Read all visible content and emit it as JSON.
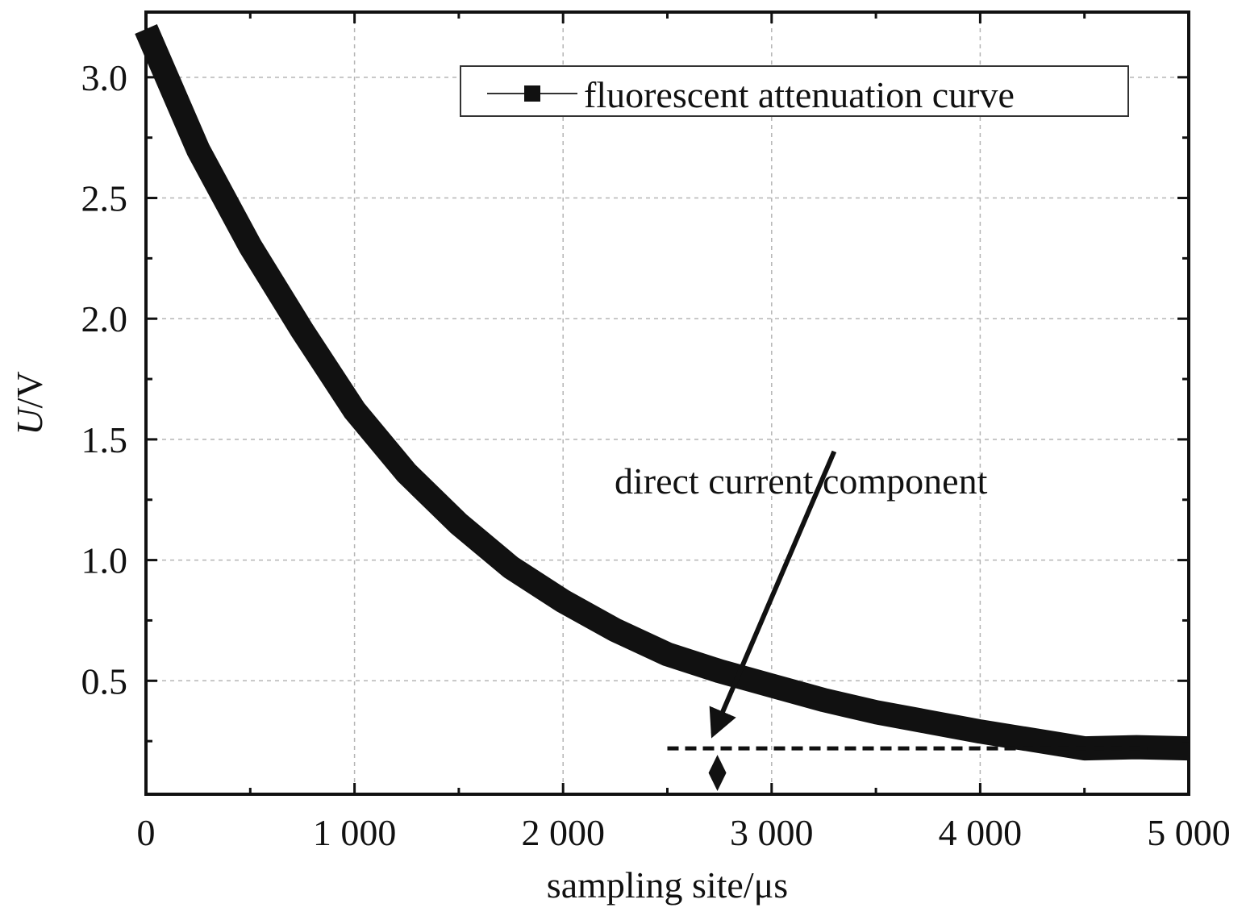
{
  "chart_data": {
    "type": "line",
    "title": "",
    "xlabel": "sampling site/μs",
    "ylabel_italic": "U",
    "ylabel_unit": "/V",
    "xlim": [
      0,
      5000
    ],
    "ylim": [
      0.03,
      3.27
    ],
    "x_ticks": [
      0,
      1000,
      2000,
      3000,
      4000,
      5000
    ],
    "x_tick_labels": [
      "0",
      "1 000",
      "2 000",
      "3 000",
      "4 000",
      "5 000"
    ],
    "y_ticks": [
      0.5,
      1.0,
      1.5,
      2.0,
      2.5,
      3.0
    ],
    "y_tick_labels": [
      "0.5",
      "1.0",
      "1.5",
      "2.0",
      "2.5",
      "3.0"
    ],
    "grid": true,
    "legend_position": "top-right",
    "series": [
      {
        "name": "fluorescent attenuation curve",
        "color": "#111111",
        "x": [
          0,
          100,
          250,
          500,
          750,
          1000,
          1250,
          1500,
          1750,
          2000,
          2250,
          2500,
          2750,
          3000,
          3250,
          3500,
          3750,
          4000,
          4250,
          4500,
          4750,
          5000
        ],
        "y": [
          3.2,
          3.0,
          2.7,
          2.3,
          1.95,
          1.62,
          1.36,
          1.15,
          0.97,
          0.83,
          0.71,
          0.61,
          0.54,
          0.48,
          0.42,
          0.37,
          0.33,
          0.29,
          0.255,
          0.22,
          0.225,
          0.22
        ]
      }
    ],
    "annotations": [
      {
        "text": "direct current component",
        "dc_level": 0.22,
        "dashed_line_x": [
          2500,
          4800
        ],
        "arrow_from": [
          3300,
          1.45
        ],
        "arrow_to": [
          2720,
          0.28
        ],
        "double_arrow_x": 2740
      }
    ]
  }
}
